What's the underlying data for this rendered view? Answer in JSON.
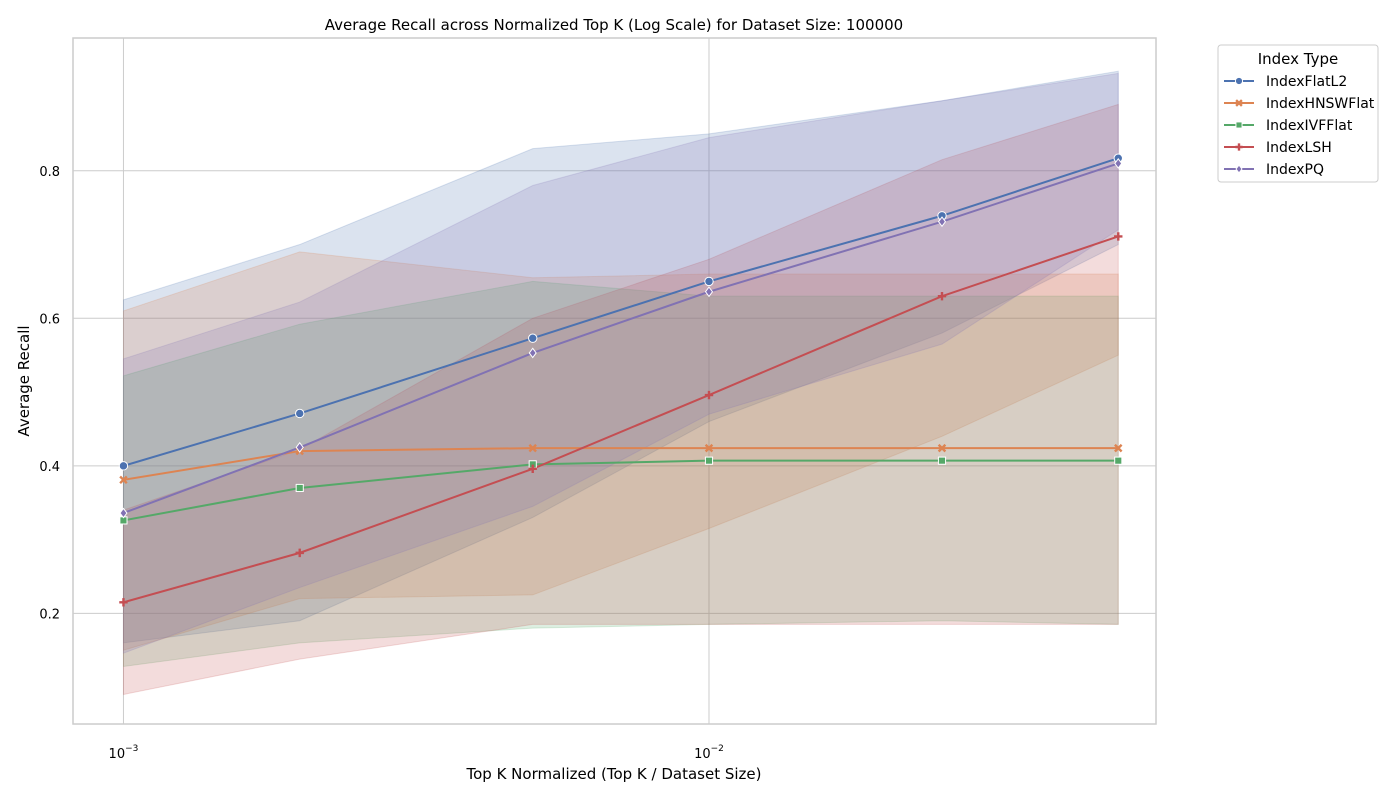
{
  "chart_data": {
    "type": "line",
    "title": "Average Recall across Normalized Top K (Log Scale) for Dataset Size: 100000",
    "xlabel": "Top K Normalized (Top K / Dataset Size)",
    "ylabel": "Average Recall",
    "xscale": "log",
    "xlim": [
      0.00082,
      0.058
    ],
    "ylim": [
      0.05,
      0.98
    ],
    "grid": true,
    "x_ticks": [
      {
        "value": 0.001,
        "base": "10",
        "exp": "−3"
      },
      {
        "value": 0.01,
        "base": "10",
        "exp": "−2"
      }
    ],
    "y_ticks": [
      0.2,
      0.4,
      0.6,
      0.8
    ],
    "x": [
      0.001,
      0.002,
      0.005,
      0.01,
      0.025,
      0.05
    ],
    "legend": {
      "title": "Index Type",
      "position": "outside-right"
    },
    "series": [
      {
        "name": "IndexFlatL2",
        "color": "#4c72b0",
        "marker": "circle",
        "values": [
          0.4,
          0.471,
          0.573,
          0.65,
          0.739,
          0.817
        ],
        "lower": [
          0.16,
          0.19,
          0.33,
          0.46,
          0.58,
          0.7
        ],
        "upper": [
          0.625,
          0.7,
          0.83,
          0.85,
          0.895,
          0.935
        ]
      },
      {
        "name": "IndexHNSWFlat",
        "color": "#dd8452",
        "marker": "x",
        "values": [
          0.381,
          0.42,
          0.424,
          0.424,
          0.424,
          0.424
        ],
        "lower": [
          0.15,
          0.22,
          0.225,
          0.315,
          0.44,
          0.55
        ],
        "upper": [
          0.61,
          0.69,
          0.655,
          0.66,
          0.66,
          0.66
        ]
      },
      {
        "name": "IndexIVFFlat",
        "color": "#55a868",
        "marker": "square",
        "values": [
          0.326,
          0.37,
          0.402,
          0.407,
          0.407,
          0.407
        ],
        "lower": [
          0.128,
          0.16,
          0.18,
          0.185,
          0.19,
          0.185
        ],
        "upper": [
          0.522,
          0.592,
          0.65,
          0.63,
          0.63,
          0.63
        ]
      },
      {
        "name": "IndexLSH",
        "color": "#c44e52",
        "marker": "plus",
        "values": [
          0.215,
          0.282,
          0.396,
          0.496,
          0.63,
          0.711
        ],
        "lower": [
          0.09,
          0.138,
          0.185,
          0.185,
          0.185,
          0.185
        ],
        "upper": [
          0.34,
          0.422,
          0.6,
          0.68,
          0.815,
          0.89
        ]
      },
      {
        "name": "IndexPQ",
        "color": "#8172b3",
        "marker": "diamond",
        "values": [
          0.336,
          0.425,
          0.553,
          0.636,
          0.731,
          0.81
        ],
        "lower": [
          0.146,
          0.235,
          0.345,
          0.47,
          0.565,
          0.72
        ],
        "upper": [
          0.545,
          0.622,
          0.78,
          0.845,
          0.895,
          0.932
        ]
      }
    ]
  }
}
